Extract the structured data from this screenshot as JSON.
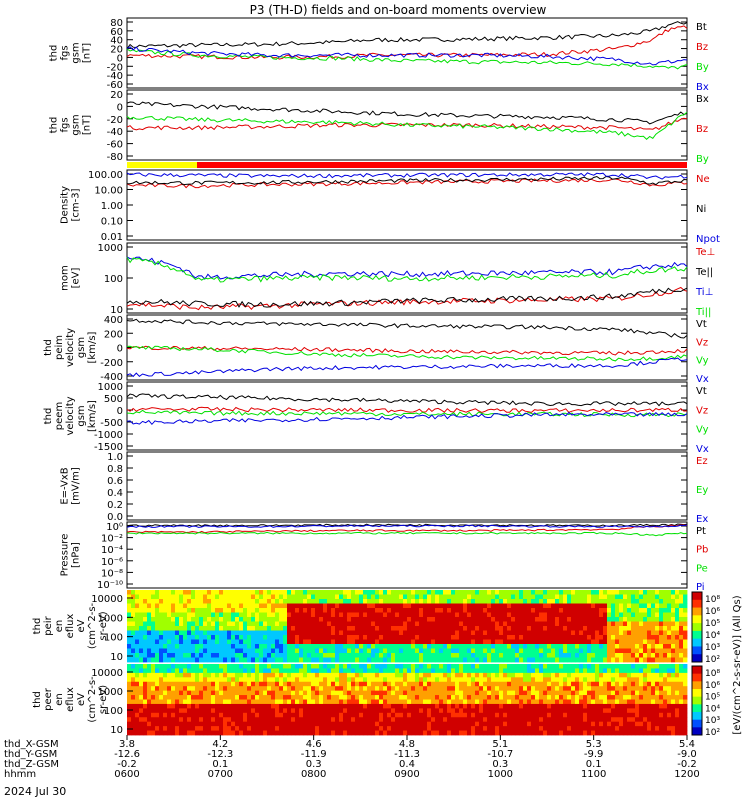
{
  "title": "P3 (TH-D) fields and on-board moments overview",
  "date_label": "2024 Jul 30",
  "colors": {
    "black": "#000000",
    "red": "#e00000",
    "green": "#00e000",
    "blue": "#0000e0",
    "yellow": "#ffff00",
    "mode_red": "#ff0000"
  },
  "chart_data": [
    {
      "type": "line",
      "panel_id": "fgs",
      "ylabel": [
        "thd",
        "fgs",
        "gsm",
        "[nT]"
      ],
      "ylim": [
        -80,
        80
      ],
      "yticks": [
        "80",
        "60",
        "40",
        "20",
        "0",
        "-20",
        "-40",
        "-60"
      ],
      "series": [
        {
          "name": "Bt",
          "color": "black",
          "x": [
            3.8,
            4.0,
            4.2,
            4.4,
            4.5,
            4.6,
            4.8,
            5.0,
            5.2,
            5.3,
            5.35,
            5.4
          ],
          "values": [
            15,
            18,
            20,
            25,
            30,
            30,
            32,
            35,
            40,
            50,
            65,
            70
          ]
        },
        {
          "name": "Bz",
          "color": "red",
          "x": [
            3.8,
            4.0,
            4.2,
            4.4,
            4.5,
            4.6,
            4.8,
            5.0,
            5.2,
            5.3,
            5.35,
            5.4
          ],
          "values": [
            -5,
            -8,
            -10,
            -8,
            -5,
            -5,
            -5,
            -3,
            10,
            30,
            55,
            60
          ]
        },
        {
          "name": "By",
          "color": "green",
          "x": [
            3.8,
            4.0,
            4.2,
            4.4,
            4.5,
            4.6,
            4.8,
            5.0,
            5.2,
            5.3,
            5.35,
            5.4
          ],
          "values": [
            5,
            -5,
            -10,
            -12,
            -15,
            -18,
            -20,
            -22,
            -25,
            -30,
            -35,
            -30
          ]
        },
        {
          "name": "Bx",
          "color": "blue",
          "x": [
            3.8,
            4.0,
            4.2,
            4.4,
            4.5,
            4.6,
            4.8,
            5.0,
            5.2,
            5.3,
            5.35,
            5.4
          ],
          "values": [
            10,
            0,
            -5,
            -5,
            -5,
            -5,
            -5,
            -8,
            -15,
            -25,
            -20,
            -15
          ]
        }
      ]
    },
    {
      "type": "line",
      "panel_id": "fgs-sm",
      "ylabel": [
        "thd",
        "fgs",
        "gsm",
        "[nT]"
      ],
      "ylim": [
        -100,
        30
      ],
      "yticks": [
        "20",
        "0",
        "-20",
        "-40",
        "-60",
        "-80"
      ],
      "series": [
        {
          "name": "Bx",
          "color": "black",
          "x": [
            3.8,
            4.0,
            4.2,
            4.4,
            4.6,
            4.8,
            5.0,
            5.2,
            5.3,
            5.4
          ],
          "values": [
            5,
            0,
            -5,
            -10,
            -15,
            -18,
            -20,
            -25,
            -30,
            -10
          ]
        },
        {
          "name": "Bz",
          "color": "red",
          "x": [
            3.8,
            4.0,
            4.2,
            4.4,
            4.6,
            4.8,
            5.0,
            5.2,
            5.3,
            5.4
          ],
          "values": [
            -40,
            -40,
            -38,
            -35,
            -35,
            -35,
            -38,
            -40,
            -45,
            -20
          ]
        },
        {
          "name": "By",
          "color": "green",
          "x": [
            3.8,
            4.0,
            4.2,
            4.4,
            4.6,
            4.8,
            5.0,
            5.2,
            5.3,
            5.4
          ],
          "values": [
            -20,
            -25,
            -28,
            -30,
            -35,
            -38,
            -42,
            -50,
            -60,
            -10
          ]
        }
      ]
    },
    {
      "type": "area",
      "panel_id": "mode-bar",
      "segments": [
        {
          "color": "yellow",
          "x": [
            3.8,
            4.0
          ]
        },
        {
          "color": "mode_red",
          "x": [
            4.0,
            5.4
          ]
        }
      ]
    },
    {
      "type": "line",
      "panel_id": "density",
      "ylabel": [
        "Density",
        "[cm-3]"
      ],
      "yscale": "log",
      "ylim": [
        0.005,
        200
      ],
      "yticks": [
        "100.00",
        "10.00",
        "1.00",
        "0.10",
        "0.01"
      ],
      "series": [
        {
          "name": "Ne",
          "color": "red",
          "x": [
            3.8,
            4.0,
            4.2,
            4.4,
            4.6,
            4.8,
            5.0,
            5.2,
            5.3,
            5.4
          ],
          "values": [
            20,
            18,
            22,
            25,
            30,
            35,
            40,
            45,
            20,
            30
          ]
        },
        {
          "name": "Ni",
          "color": "black",
          "x": [
            3.8,
            4.0,
            4.2,
            4.4,
            4.6,
            4.8,
            5.0,
            5.2,
            5.3,
            5.4
          ],
          "values": [
            30,
            28,
            30,
            35,
            40,
            45,
            50,
            60,
            25,
            40
          ]
        },
        {
          "name": "Npot",
          "color": "blue",
          "x": [
            3.8,
            4.0,
            4.2,
            4.4,
            4.6,
            4.8,
            5.0,
            5.2,
            5.3,
            5.4
          ],
          "values": [
            100,
            90,
            80,
            85,
            90,
            95,
            100,
            100,
            60,
            80
          ]
        }
      ]
    },
    {
      "type": "line",
      "panel_id": "temperature",
      "ylabel": [
        "mom",
        "[eV]"
      ],
      "yscale": "log",
      "ylim": [
        6,
        6000
      ],
      "yticks": [
        "1000",
        "100",
        "10"
      ],
      "series": [
        {
          "name": "Te⊥",
          "color": "red",
          "x": [
            3.8,
            4.0,
            4.2,
            4.4,
            4.6,
            4.8,
            5.0,
            5.2,
            5.3,
            5.4
          ],
          "values": [
            15,
            10,
            12,
            15,
            18,
            20,
            22,
            25,
            40,
            60
          ]
        },
        {
          "name": "Te||",
          "color": "black",
          "x": [
            3.8,
            4.0,
            4.2,
            4.4,
            4.6,
            4.8,
            5.0,
            5.2,
            5.3,
            5.4
          ],
          "values": [
            20,
            15,
            14,
            16,
            20,
            22,
            25,
            30,
            50,
            70
          ]
        },
        {
          "name": "Ti⊥",
          "color": "blue",
          "x": [
            3.8,
            4.0,
            4.2,
            4.4,
            4.6,
            4.8,
            5.0,
            5.2,
            5.3,
            5.4
          ],
          "values": [
            1500,
            200,
            250,
            300,
            280,
            300,
            320,
            350,
            600,
            700
          ]
        },
        {
          "name": "Ti||",
          "color": "green",
          "x": [
            3.8,
            4.0,
            4.2,
            4.4,
            4.6,
            4.8,
            5.0,
            5.2,
            5.3,
            5.4
          ],
          "values": [
            1200,
            150,
            180,
            200,
            180,
            200,
            220,
            250,
            400,
            500
          ]
        }
      ]
    },
    {
      "type": "line",
      "panel_id": "ion-velocity",
      "ylabel": [
        "thd",
        "peim",
        "velocity",
        "gsm",
        "[km/s]"
      ],
      "ylim": [
        -450,
        450
      ],
      "yticks": [
        "400",
        "200",
        "0",
        "-200",
        "-400"
      ],
      "series": [
        {
          "name": "Vt",
          "color": "black",
          "x": [
            3.8,
            4.0,
            4.2,
            4.4,
            4.6,
            4.8,
            5.0,
            5.2,
            5.3,
            5.4
          ],
          "values": [
            380,
            350,
            330,
            320,
            300,
            290,
            280,
            250,
            200,
            150
          ]
        },
        {
          "name": "Vz",
          "color": "red",
          "x": [
            3.8,
            4.0,
            4.2,
            4.4,
            4.6,
            4.8,
            5.0,
            5.2,
            5.3,
            5.4
          ],
          "values": [
            0,
            -10,
            -20,
            -30,
            -50,
            -60,
            -70,
            -80,
            -60,
            -40
          ]
        },
        {
          "name": "Vy",
          "color": "green",
          "x": [
            3.8,
            4.0,
            4.2,
            4.4,
            4.6,
            4.8,
            5.0,
            5.2,
            5.3,
            5.4
          ],
          "values": [
            0,
            -20,
            -60,
            -100,
            -120,
            -140,
            -150,
            -160,
            -150,
            -120
          ]
        },
        {
          "name": "Vx",
          "color": "blue",
          "x": [
            3.8,
            4.0,
            4.2,
            4.4,
            4.6,
            4.8,
            5.0,
            5.2,
            5.3,
            5.4
          ],
          "values": [
            -380,
            -350,
            -300,
            -280,
            -270,
            -260,
            -250,
            -250,
            -200,
            -150
          ]
        }
      ]
    },
    {
      "type": "line",
      "panel_id": "electron-velocity",
      "ylabel": [
        "thd",
        "peem",
        "velocity",
        "gsm",
        "[km/s]"
      ],
      "ylim": [
        -1500,
        1000
      ],
      "yticks": [
        "1000",
        "500",
        "0",
        "-500",
        "-1000",
        "-1500"
      ],
      "series": [
        {
          "name": "Vt",
          "color": "black",
          "x": [
            3.8,
            4.0,
            4.2,
            4.4,
            4.6,
            4.8,
            5.0,
            5.2,
            5.3,
            5.4
          ],
          "values": [
            500,
            450,
            400,
            350,
            300,
            250,
            200,
            200,
            200,
            200
          ]
        },
        {
          "name": "Vz",
          "color": "red",
          "x": [
            3.8,
            4.0,
            4.2,
            4.4,
            4.6,
            4.8,
            5.0,
            5.2,
            5.3,
            5.4
          ],
          "values": [
            0,
            0,
            -20,
            -30,
            -40,
            -50,
            -50,
            -40,
            -30,
            -20
          ]
        },
        {
          "name": "Vy",
          "color": "green",
          "x": [
            3.8,
            4.0,
            4.2,
            4.4,
            4.6,
            4.8,
            5.0,
            5.2,
            5.3,
            5.4
          ],
          "values": [
            -100,
            -150,
            -150,
            -150,
            -180,
            -180,
            -180,
            -200,
            -200,
            -200
          ]
        },
        {
          "name": "Vx",
          "color": "blue",
          "x": [
            3.8,
            4.0,
            4.2,
            4.4,
            4.6,
            4.8,
            5.0,
            5.2,
            5.3,
            5.4
          ],
          "values": [
            -500,
            -450,
            -400,
            -350,
            -300,
            -250,
            -200,
            -200,
            -200,
            -200
          ]
        }
      ]
    },
    {
      "type": "line",
      "panel_id": "efield",
      "ylabel": [
        "E=-VxB",
        "[mV/m]"
      ],
      "ylim": [
        0,
        1.0
      ],
      "yticks": [
        "1.0",
        "0.8",
        "0.6",
        "0.4",
        "0.2",
        "0.0"
      ],
      "series": [
        {
          "name": "Ez",
          "color": "red",
          "x": [],
          "values": []
        },
        {
          "name": "Ey",
          "color": "green",
          "x": [],
          "values": []
        },
        {
          "name": "Ex",
          "color": "blue",
          "x": [],
          "values": []
        }
      ]
    },
    {
      "type": "line",
      "panel_id": "pressure",
      "ylabel": [
        "Pressure",
        "[nPa]"
      ],
      "yscale": "log",
      "ylim": [
        1e-10,
        1
      ],
      "yticks": [
        "10⁰",
        "10⁻²",
        "10⁻⁴",
        "10⁻⁶",
        "10⁻⁸",
        "10⁻¹⁰"
      ],
      "series": [
        {
          "name": "Pt",
          "color": "black",
          "x": [
            3.8,
            4.0,
            4.2,
            4.4,
            4.6,
            4.8,
            5.0,
            5.2,
            5.3,
            5.4
          ],
          "values": [
            0.3,
            0.3,
            0.3,
            0.35,
            0.35,
            0.35,
            0.3,
            0.3,
            0.35,
            0.4
          ]
        },
        {
          "name": "Pb",
          "color": "red",
          "x": [
            3.8,
            4.0,
            4.2,
            4.4,
            4.6,
            4.8,
            5.0,
            5.2,
            5.3,
            5.4
          ],
          "values": [
            0.03,
            0.03,
            0.04,
            0.05,
            0.05,
            0.05,
            0.06,
            0.08,
            0.2,
            0.3
          ]
        },
        {
          "name": "Pe",
          "color": "green",
          "x": [
            3.8,
            4.0,
            4.2,
            4.4,
            4.6,
            4.8,
            5.0,
            5.2,
            5.3,
            5.4
          ],
          "values": [
            0.02,
            0.02,
            0.02,
            0.02,
            0.02,
            0.02,
            0.02,
            0.02,
            0.01,
            0.02
          ]
        },
        {
          "name": "Pi",
          "color": "blue",
          "x": [
            3.8,
            4.0,
            4.2,
            4.4,
            4.6,
            4.8,
            5.0,
            5.2,
            5.3,
            5.4
          ],
          "values": [
            0.2,
            0.2,
            0.2,
            0.25,
            0.25,
            0.25,
            0.22,
            0.2,
            0.2,
            0.3
          ]
        }
      ]
    },
    {
      "type": "heatmap",
      "panel_id": "ion-spectrogram",
      "ylabel": [
        "thd",
        "peir",
        "en",
        "eflux",
        "eV",
        "(cm^2-s-",
        "sr-eV)"
      ],
      "yscale": "log",
      "yticks": [
        "10000",
        "1000",
        "100",
        "10"
      ],
      "color_range_exponents": [
        2,
        8
      ]
    },
    {
      "type": "heatmap",
      "panel_id": "electron-spectrogram",
      "ylabel": [
        "thd",
        "peer",
        "en",
        "eflux",
        "eV",
        "(cm^2-s-",
        "sr-eV)"
      ],
      "yscale": "log",
      "yticks": [
        "10000",
        "1000",
        "100",
        "10"
      ],
      "color_range_exponents": [
        2,
        8
      ]
    }
  ],
  "colorbar": {
    "label": "[eV/(cm^2-s-sr-eV)] (All Qs)",
    "upper_ticks": [
      "10⁸",
      "10⁶",
      "10⁵",
      "10⁴",
      "10³",
      "10²"
    ],
    "lower_ticks": [
      "10⁸",
      "10⁶",
      "10⁵",
      "10⁴",
      "10³",
      "10²"
    ]
  },
  "x_axis": {
    "row_labels": [
      "thd_X-GSM",
      "thd_Y-GSM",
      "thd_Z-GSM",
      "hhmm"
    ],
    "ticks": [
      {
        "x": "3.8",
        "y": "-12.6",
        "z": "-0.2",
        "time": "0600"
      },
      {
        "x": "4.2",
        "y": "-12.3",
        "z": "0.1",
        "time": "0700"
      },
      {
        "x": "4.6",
        "y": "-11.9",
        "z": "0.3",
        "time": "0800"
      },
      {
        "x": "4.8",
        "y": "-11.3",
        "z": "0.4",
        "time": "0900"
      },
      {
        "x": "5.1",
        "y": "-10.7",
        "z": "0.3",
        "time": "1000"
      },
      {
        "x": "5.3",
        "y": "-9.9",
        "z": "0.1",
        "time": "1100"
      },
      {
        "x": "5.4",
        "y": "-9.0",
        "z": "-0.2",
        "time": "1200"
      }
    ]
  }
}
